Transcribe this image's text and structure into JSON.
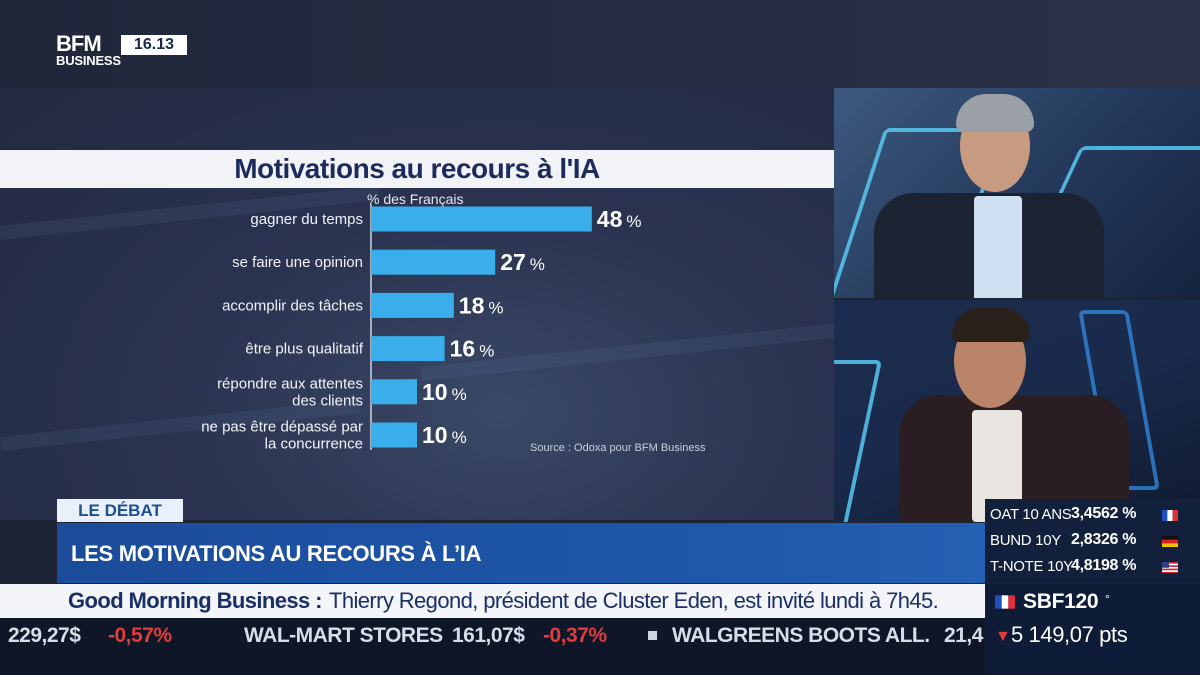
{
  "header": {
    "logo_line1": "BFM",
    "logo_line2": "BUSINESS",
    "clock": "16.13"
  },
  "chart_data": {
    "type": "bar",
    "orientation": "horizontal",
    "title": "Motivations au recours à l'IA",
    "subtitle": "% des Français",
    "unit": "%",
    "categories": [
      [
        "gagner du temps"
      ],
      [
        "se faire une opinion"
      ],
      [
        "accomplir des tâches"
      ],
      [
        "être plus qualitatif"
      ],
      [
        "répondre aux attentes",
        "des clients"
      ],
      [
        "ne pas être dépassé par",
        "la concurrence"
      ]
    ],
    "values": [
      48,
      27,
      18,
      16,
      10,
      10
    ],
    "source": "Source : Odoxa pour BFM Business",
    "bar_color": "#3aaeea",
    "grid": false
  },
  "lower_third": {
    "tag": "LE DÉBAT",
    "headline": "LES MOTIVATIONS AU RECOURS À L’IA"
  },
  "ticker": {
    "show_name": "Good Morning Business :",
    "text": "Thierry Regond, président de Cluster Eden, est invité lundi à 7h45.",
    "items": [
      {
        "text": "229,27$",
        "color": "#d9dde6"
      },
      {
        "text": "-0,57%",
        "color": "#e23c3c"
      },
      {
        "text": "WAL-MART STORES",
        "color": "#d9dde6"
      },
      {
        "text": "161,07$",
        "color": "#d9dde6"
      },
      {
        "text": "-0,37%",
        "color": "#e23c3c"
      },
      {
        "text": "WALGREENS BOOTS ALL.",
        "color": "#d9dde6"
      },
      {
        "text": "21,4",
        "color": "#d9dde6"
      }
    ]
  },
  "rates": [
    {
      "label": "OAT 10 ANS",
      "value": "3,4562 %",
      "flag": "fr"
    },
    {
      "label": "BUND 10Y",
      "value": "2,8326 %",
      "flag": "de"
    },
    {
      "label": "T-NOTE 10Y",
      "value": "4,8198 %",
      "flag": "us"
    }
  ],
  "index": {
    "name": "SBF120",
    "flag": "fr",
    "marker": "°",
    "arrow": "▼",
    "value": "5 149,07 pts"
  }
}
